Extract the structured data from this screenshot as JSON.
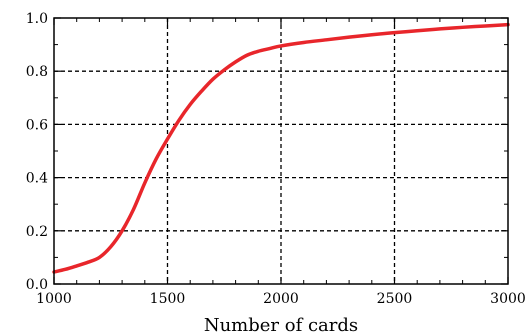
{
  "chart_data": {
    "type": "line",
    "title": "",
    "xlabel": "Number of cards",
    "ylabel": "",
    "xlim": [
      1000,
      3000
    ],
    "ylim": [
      0.0,
      1.0
    ],
    "xticks": [
      1000,
      1500,
      2000,
      2500,
      3000
    ],
    "xtick_labels": [
      "1000",
      "1500",
      "2000",
      "2500",
      "3000"
    ],
    "yticks": [
      0.0,
      0.2,
      0.4,
      0.6,
      0.8,
      1.0
    ],
    "ytick_labels": [
      "0.0",
      "0.2",
      "0.4",
      "0.6",
      "0.8",
      "1.0"
    ],
    "grid": true,
    "legend": "none",
    "colors": {
      "line": "#e8262b",
      "grid": "#000000",
      "axis": "#000000"
    },
    "series": [
      {
        "x": [
          1000,
          1050,
          1100,
          1150,
          1200,
          1250,
          1300,
          1350,
          1400,
          1450,
          1500,
          1550,
          1600,
          1650,
          1700,
          1750,
          1800,
          1850,
          1900,
          1950,
          2000,
          2100,
          2200,
          2300,
          2400,
          2500,
          2600,
          2700,
          2800,
          2900,
          3000
        ],
        "y": [
          0.045,
          0.055,
          0.068,
          0.082,
          0.1,
          0.14,
          0.2,
          0.28,
          0.38,
          0.47,
          0.545,
          0.615,
          0.675,
          0.725,
          0.77,
          0.805,
          0.835,
          0.86,
          0.875,
          0.885,
          0.895,
          0.908,
          0.918,
          0.928,
          0.937,
          0.945,
          0.952,
          0.959,
          0.965,
          0.97,
          0.975
        ]
      }
    ]
  }
}
